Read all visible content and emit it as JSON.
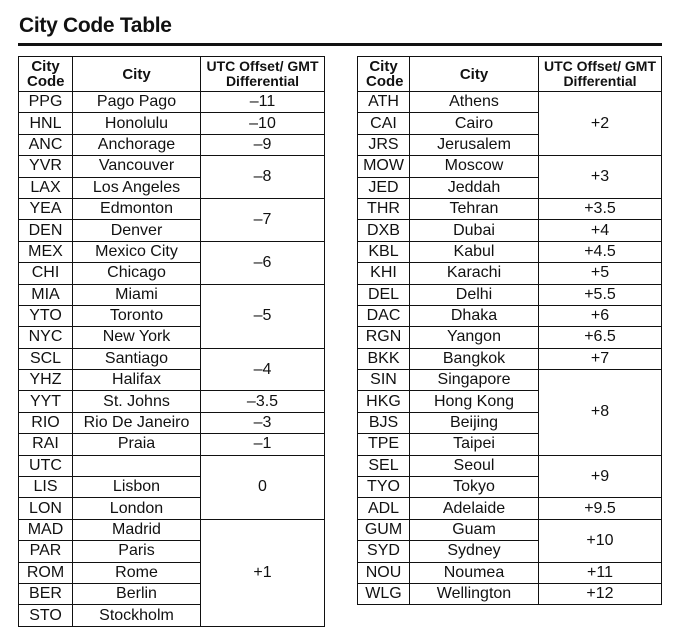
{
  "title": "City Code Table",
  "tables": [
    {
      "headers": [
        "City Code",
        "City",
        "UTC Offset/ GMT Differential"
      ],
      "groups": [
        {
          "offset": "–11",
          "cities": [
            {
              "code": "PPG",
              "name": "Pago Pago"
            }
          ]
        },
        {
          "offset": "–10",
          "cities": [
            {
              "code": "HNL",
              "name": "Honolulu"
            }
          ]
        },
        {
          "offset": "–9",
          "cities": [
            {
              "code": "ANC",
              "name": "Anchorage"
            }
          ]
        },
        {
          "offset": "–8",
          "cities": [
            {
              "code": "YVR",
              "name": "Vancouver"
            },
            {
              "code": "LAX",
              "name": "Los Angeles"
            }
          ]
        },
        {
          "offset": "–7",
          "cities": [
            {
              "code": "YEA",
              "name": "Edmonton"
            },
            {
              "code": "DEN",
              "name": "Denver"
            }
          ]
        },
        {
          "offset": "–6",
          "cities": [
            {
              "code": "MEX",
              "name": "Mexico City"
            },
            {
              "code": "CHI",
              "name": "Chicago"
            }
          ]
        },
        {
          "offset": "–5",
          "cities": [
            {
              "code": "MIA",
              "name": "Miami"
            },
            {
              "code": "YTO",
              "name": "Toronto"
            },
            {
              "code": "NYC",
              "name": "New York"
            }
          ]
        },
        {
          "offset": "–4",
          "cities": [
            {
              "code": "SCL",
              "name": "Santiago"
            },
            {
              "code": "YHZ",
              "name": "Halifax"
            }
          ]
        },
        {
          "offset": "–3.5",
          "cities": [
            {
              "code": "YYT",
              "name": "St. Johns"
            }
          ]
        },
        {
          "offset": "–3",
          "cities": [
            {
              "code": "RIO",
              "name": "Rio De Janeiro"
            }
          ]
        },
        {
          "offset": "–1",
          "cities": [
            {
              "code": "RAI",
              "name": "Praia"
            }
          ]
        },
        {
          "offset": "0",
          "cities": [
            {
              "code": "UTC",
              "name": null
            },
            {
              "code": "LIS",
              "name": "Lisbon"
            },
            {
              "code": "LON",
              "name": "London"
            }
          ]
        },
        {
          "offset": "+1",
          "cities": [
            {
              "code": "MAD",
              "name": "Madrid"
            },
            {
              "code": "PAR",
              "name": "Paris"
            },
            {
              "code": "ROM",
              "name": "Rome"
            },
            {
              "code": "BER",
              "name": "Berlin"
            },
            {
              "code": "STO",
              "name": "Stockholm"
            }
          ]
        }
      ]
    },
    {
      "headers": [
        "City Code",
        "City",
        "UTC Offset/ GMT Differential"
      ],
      "groups": [
        {
          "offset": "+2",
          "cities": [
            {
              "code": "ATH",
              "name": "Athens"
            },
            {
              "code": "CAI",
              "name": "Cairo"
            },
            {
              "code": "JRS",
              "name": "Jerusalem"
            }
          ]
        },
        {
          "offset": "+3",
          "cities": [
            {
              "code": "MOW",
              "name": "Moscow"
            },
            {
              "code": "JED",
              "name": "Jeddah"
            }
          ]
        },
        {
          "offset": "+3.5",
          "cities": [
            {
              "code": "THR",
              "name": "Tehran"
            }
          ]
        },
        {
          "offset": "+4",
          "cities": [
            {
              "code": "DXB",
              "name": "Dubai"
            }
          ]
        },
        {
          "offset": "+4.5",
          "cities": [
            {
              "code": "KBL",
              "name": "Kabul"
            }
          ]
        },
        {
          "offset": "+5",
          "cities": [
            {
              "code": "KHI",
              "name": "Karachi"
            }
          ]
        },
        {
          "offset": "+5.5",
          "cities": [
            {
              "code": "DEL",
              "name": "Delhi"
            }
          ]
        },
        {
          "offset": "+6",
          "cities": [
            {
              "code": "DAC",
              "name": "Dhaka"
            }
          ]
        },
        {
          "offset": "+6.5",
          "cities": [
            {
              "code": "RGN",
              "name": "Yangon"
            }
          ]
        },
        {
          "offset": "+7",
          "cities": [
            {
              "code": "BKK",
              "name": "Bangkok"
            }
          ]
        },
        {
          "offset": "+8",
          "cities": [
            {
              "code": "SIN",
              "name": "Singapore"
            },
            {
              "code": "HKG",
              "name": "Hong Kong"
            },
            {
              "code": "BJS",
              "name": "Beijing"
            },
            {
              "code": "TPE",
              "name": "Taipei"
            }
          ]
        },
        {
          "offset": "+9",
          "cities": [
            {
              "code": "SEL",
              "name": "Seoul"
            },
            {
              "code": "TYO",
              "name": "Tokyo"
            }
          ]
        },
        {
          "offset": "+9.5",
          "cities": [
            {
              "code": "ADL",
              "name": "Adelaide"
            }
          ]
        },
        {
          "offset": "+10",
          "cities": [
            {
              "code": "GUM",
              "name": "Guam"
            },
            {
              "code": "SYD",
              "name": "Sydney"
            }
          ]
        },
        {
          "offset": "+11",
          "cities": [
            {
              "code": "NOU",
              "name": "Noumea"
            }
          ]
        },
        {
          "offset": "+12",
          "cities": [
            {
              "code": "WLG",
              "name": "Wellington"
            }
          ]
        }
      ]
    }
  ]
}
